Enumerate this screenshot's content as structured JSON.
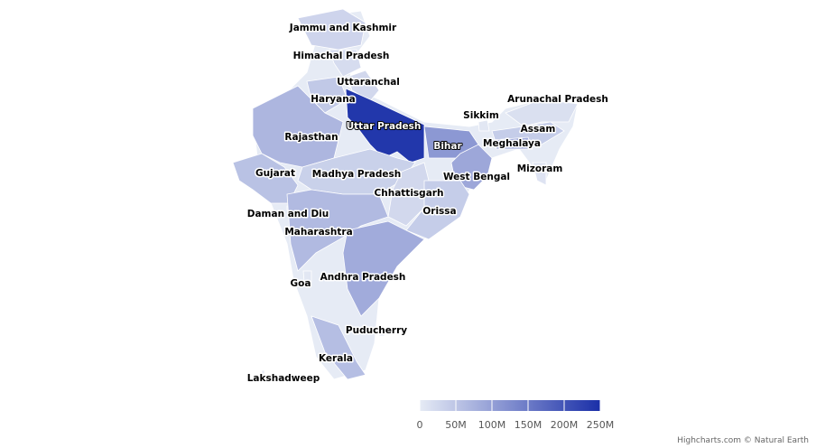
{
  "chart_data": {
    "type": "map",
    "categories": [
      "Jammu and Kashmir",
      "Himachal Pradesh",
      "Uttaranchal",
      "Haryana",
      "Rajasthan",
      "Uttar Pradesh",
      "Bihar",
      "Sikkim",
      "Arunachal Pradesh",
      "Assam",
      "Meghalaya",
      "Mizoram",
      "Gujarat",
      "Madhya Pradesh",
      "West Bengal",
      "Chhattisgarh",
      "Daman and Diu",
      "Orissa",
      "Maharashtra",
      "Goa",
      "Andhra Pradesh",
      "Puducherry",
      "Kerala",
      "Lakshadweep"
    ],
    "values": [
      30000000,
      20000000,
      25000000,
      45000000,
      70000000,
      240000000,
      110000000,
      5000000,
      15000000,
      40000000,
      85000000,
      10000000,
      55000000,
      35000000,
      90000000,
      25000000,
      1000000,
      40000000,
      65000000,
      5000000,
      85000000,
      1000000,
      60000000,
      1000000
    ],
    "colorlim": [
      0,
      250000000
    ],
    "colorticks": [
      0,
      {
        "value": 50000000,
        "label": "50M"
      },
      {
        "value": 100000000,
        "label": "100M"
      },
      {
        "value": 150000000,
        "label": "150M"
      },
      {
        "value": 200000000,
        "label": "200M"
      },
      {
        "value": 250000000,
        "label": "250M"
      }
    ],
    "color_range": [
      "#e6ebf5",
      "#1a2fa8"
    ],
    "credit": "Highcharts.com © Natural Earth"
  }
}
